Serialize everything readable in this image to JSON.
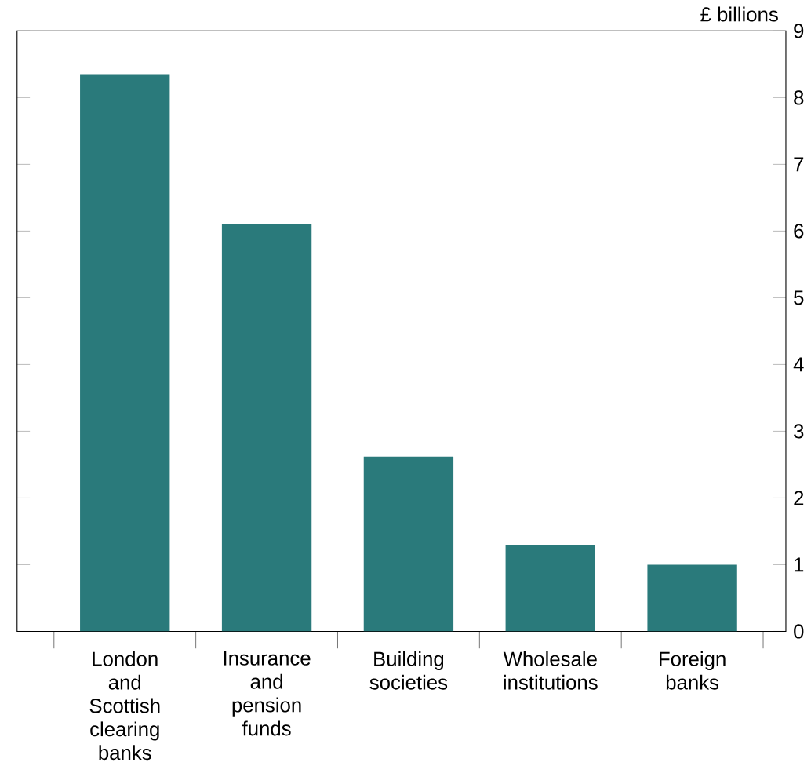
{
  "chart_data": {
    "type": "bar",
    "ylabel": "£ billions",
    "categories": [
      "London and Scottish clearing banks",
      "Insurance and pension funds",
      "Building societies",
      "Wholesale institutions",
      "Foreign banks"
    ],
    "values": [
      8.35,
      6.1,
      2.62,
      1.3,
      1.0
    ],
    "color": "#2a7a7b",
    "ylim": [
      0,
      9
    ],
    "yticks": [
      0,
      1,
      2,
      3,
      4,
      5,
      6,
      7,
      8,
      9
    ],
    "grid": false
  }
}
